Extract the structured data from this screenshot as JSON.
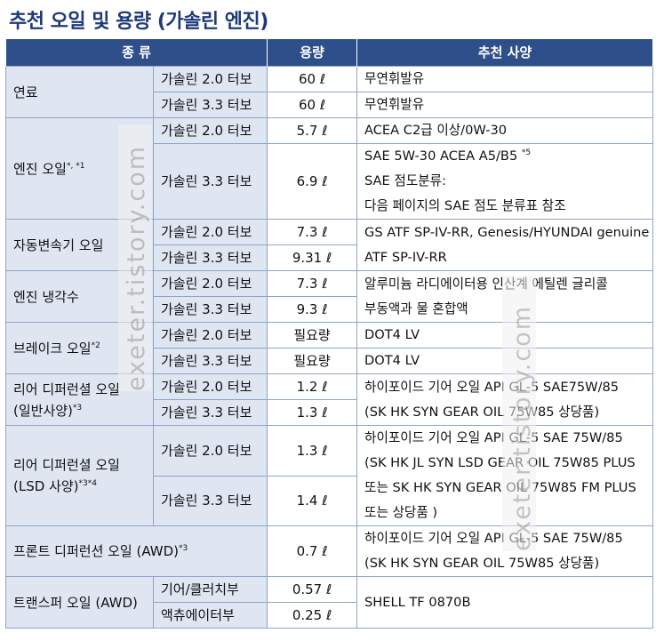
{
  "title": "추천 오일 및 용량 (가솔린 엔진)",
  "header": {
    "col_kind": "종    류",
    "col_capacity": "용량",
    "col_spec": "추천 사양"
  },
  "rows": {
    "fuel": {
      "category": "연료",
      "sub1": "가솔린 2.0 터보",
      "cap1": "60 ℓ",
      "spec1": "무연휘발유",
      "sub2": "가솔린 3.3 터보",
      "cap2": "60 ℓ",
      "spec2": "무연휘발유"
    },
    "engine_oil": {
      "category": "엔진 오일",
      "category_note": "*, *1",
      "sub1": "가솔린 2.0 터보",
      "cap1": "5.7 ℓ",
      "spec1": "ACEA C2급 이상/0W-30",
      "sub2": "가솔린 3.3 터보",
      "cap2": "6.9 ℓ",
      "spec2_line1": "SAE 5W-30 ACEA A5/B5",
      "spec2_note": "*5",
      "spec2_line2": "SAE 점도분류:",
      "spec2_line3": "다음 페이지의 SAE 점도 분류표 참조"
    },
    "transmission": {
      "category": "자동변속기 오일",
      "sub1": "가솔린 2.0 터보",
      "cap1": "7.3 ℓ",
      "sub2": "가솔린 3.3 터보",
      "cap2": "9.31 ℓ",
      "spec_line1": "GS ATF SP-IV-RR, Genesis/HYUNDAI genuine",
      "spec_line2": "ATF SP-IV-RR"
    },
    "coolant": {
      "category": "엔진 냉각수",
      "sub1": "가솔린 2.0 터보",
      "cap1": "7.3 ℓ",
      "sub2": "가솔린 3.3 터보",
      "cap2": "9.3 ℓ",
      "spec_line1": "알루미늄 라디에이터용 인산계 에틸렌 글리콜",
      "spec_line2": "부동액과 물 혼합액"
    },
    "brake": {
      "category": "브레이크 오일",
      "category_note": "*2",
      "sub1": "가솔린 2.0 터보",
      "cap1": "필요량",
      "spec1": "DOT4 LV",
      "sub2": "가솔린 3.3 터보",
      "cap2": "필요량",
      "spec2": "DOT4 LV"
    },
    "rear_diff": {
      "category_line1": "리어 디퍼런셜 오일",
      "category_line2": "(일반사양)",
      "category_note": "*3",
      "sub1": "가솔린 2.0 터보",
      "cap1": "1.2 ℓ",
      "sub2": "가솔린 3.3 터보",
      "cap2": "1.3 ℓ",
      "spec_line1": "하이포이드 기어 오일 API GL-5 SAE75W/85",
      "spec_line2": "(SK HK SYN GEAR OIL 75W85 상당품)"
    },
    "rear_diff_lsd": {
      "category_line1": "리어 디퍼런셜 오일",
      "category_line2": "(LSD 사양)",
      "category_note": "*3*4",
      "sub1": "가솔린 2.0 터보",
      "cap1": "1.3 ℓ",
      "sub2": "가솔린 3.3 터보",
      "cap2": "1.4 ℓ",
      "spec_line1": "하이포이드 기어 오일 API GL-5 SAE 75W/85",
      "spec_line2": "(SK HK JL SYN LSD GEAR OIL 75W85 PLUS",
      "spec_line3": "또는 SK HK SYN GEAR OIL 75W85 FM PLUS",
      "spec_line4": "또는 상당품 )"
    },
    "front_diff": {
      "category": "프론트 디퍼런션 오일 (AWD)",
      "category_note": "*3",
      "cap": "0.7 ℓ",
      "spec_line1": "하이포이드 기어 오일 API GL-5 SAE 75W/85",
      "spec_line2": "(SK HK SYN GEAR OIL 75W85 상당품)"
    },
    "transfer": {
      "category": "트랜스퍼 오일 (AWD)",
      "sub1": "기어/클러치부",
      "cap1": "0.57 ℓ",
      "sub2": "액츄에이터부",
      "cap2": "0.25 ℓ",
      "spec": "SHELL TF 0870B"
    }
  },
  "watermark": {
    "text": "exeter.tistory.com"
  },
  "colors": {
    "title": "#1f3a7a",
    "header_bg": "#2f4f8a",
    "category_bg": "#dfe6f2",
    "border": "#8ea4c8"
  }
}
